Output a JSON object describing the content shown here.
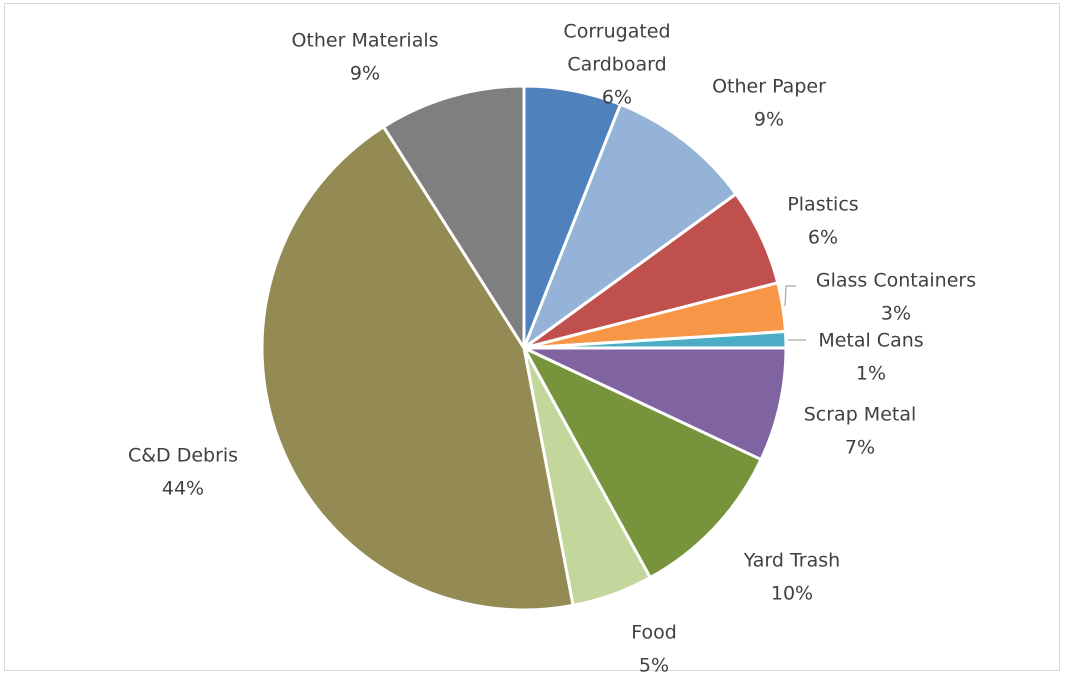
{
  "chart_data": {
    "type": "pie",
    "title": "",
    "slices": [
      {
        "label": "Corrugated Cardboard",
        "value": 6,
        "percent_label": "6%",
        "color": "#4f81bd"
      },
      {
        "label": "Other Paper",
        "value": 9,
        "percent_label": "9%",
        "color": "#95b3d7"
      },
      {
        "label": "Plastics",
        "value": 6,
        "percent_label": "6%",
        "color": "#c0504d"
      },
      {
        "label": "Glass Containers",
        "value": 3,
        "percent_label": "3%",
        "color": "#f79646"
      },
      {
        "label": "Metal Cans",
        "value": 1,
        "percent_label": "1%",
        "color": "#4bacc6"
      },
      {
        "label": "Scrap Metal",
        "value": 7,
        "percent_label": "7%",
        "color": "#8064a2"
      },
      {
        "label": "Yard Trash",
        "value": 10,
        "percent_label": "10%",
        "color": "#77933c"
      },
      {
        "label": "Food",
        "value": 5,
        "percent_label": "5%",
        "color": "#c3d69b"
      },
      {
        "label": "C&D Debris",
        "value": 44,
        "percent_label": "44%",
        "color": "#948a54"
      },
      {
        "label": "Other Materials",
        "value": 9,
        "percent_label": "9%",
        "color": "#7f7f7f"
      }
    ],
    "start_angle": "12 o'clock",
    "direction": "clockwise",
    "legend": "none"
  }
}
